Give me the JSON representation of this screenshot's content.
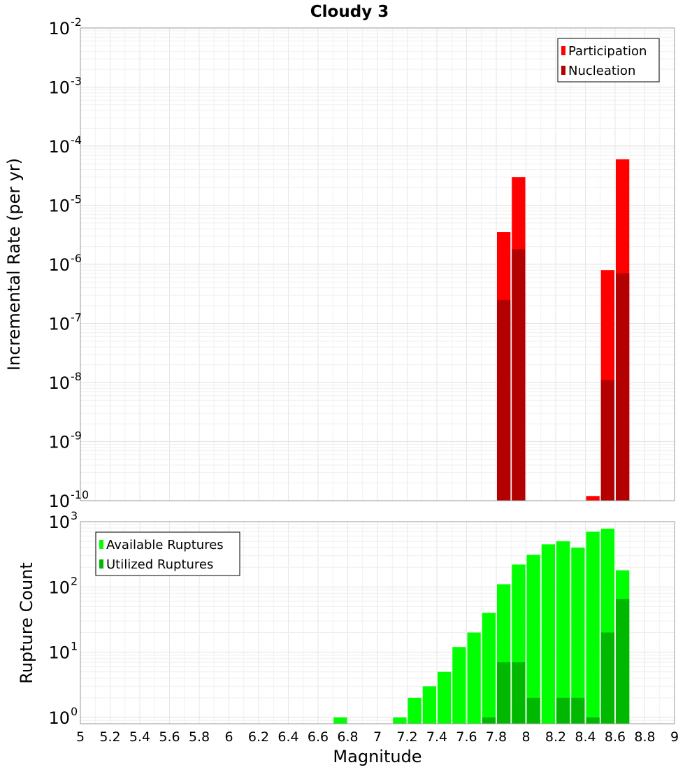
{
  "chart_data": {
    "type": "bar",
    "title": "Cloudy 3",
    "xlabel": "Magnitude",
    "xlim": [
      5,
      9
    ],
    "x_ticks": [
      "5",
      "5.2",
      "5.4",
      "5.6",
      "5.8",
      "6",
      "6.2",
      "6.4",
      "6.6",
      "6.8",
      "7",
      "7.2",
      "7.4",
      "7.6",
      "7.8",
      "8",
      "8.2",
      "8.4",
      "8.6",
      "8.8",
      "9"
    ],
    "bin_width": 0.1,
    "grid": true,
    "panels": [
      {
        "ylabel": "Incremental Rate (per yr)",
        "yscale": "log",
        "ylim": [
          1e-10,
          0.01
        ],
        "y_tick_exponents": [
          "-10",
          "-9",
          "-8",
          "-7",
          "-6",
          "-5",
          "-4",
          "-3",
          "-2"
        ],
        "legend_position": "top-right",
        "series": [
          {
            "name": "Participation",
            "color": "#ff0000",
            "x": [
              7.85,
              7.95,
              8.45,
              8.55,
              8.65
            ],
            "values": [
              3.5e-06,
              3e-05,
              1.2e-10,
              8e-07,
              6e-05
            ]
          },
          {
            "name": "Nucleation",
            "color": "#b30000",
            "x": [
              7.85,
              7.95,
              8.55,
              8.65
            ],
            "values": [
              2.5e-07,
              1.8e-06,
              1.1e-08,
              7e-07
            ]
          }
        ]
      },
      {
        "ylabel": "Rupture Count",
        "yscale": "log",
        "ylim": [
          0.8,
          1000
        ],
        "y_tick_exponents": [
          "0",
          "1",
          "2",
          "3"
        ],
        "legend_position": "top-left",
        "series": [
          {
            "name": "Available Ruptures",
            "color": "#00ff00",
            "x": [
              6.75,
              7.15,
              7.25,
              7.35,
              7.45,
              7.55,
              7.65,
              7.75,
              7.85,
              7.95,
              8.05,
              8.15,
              8.25,
              8.35,
              8.45,
              8.55,
              8.65
            ],
            "values": [
              1,
              1,
              2,
              3,
              5,
              12,
              20,
              40,
              110,
              220,
              310,
              450,
              500,
              400,
              700,
              780,
              180
            ]
          },
          {
            "name": "Utilized Ruptures",
            "color": "#00b800",
            "x": [
              7.75,
              7.85,
              7.95,
              8.05,
              8.25,
              8.35,
              8.45,
              8.55,
              8.65
            ],
            "values": [
              1,
              7,
              7,
              2,
              2,
              2,
              1,
              20,
              65
            ]
          }
        ]
      }
    ]
  }
}
